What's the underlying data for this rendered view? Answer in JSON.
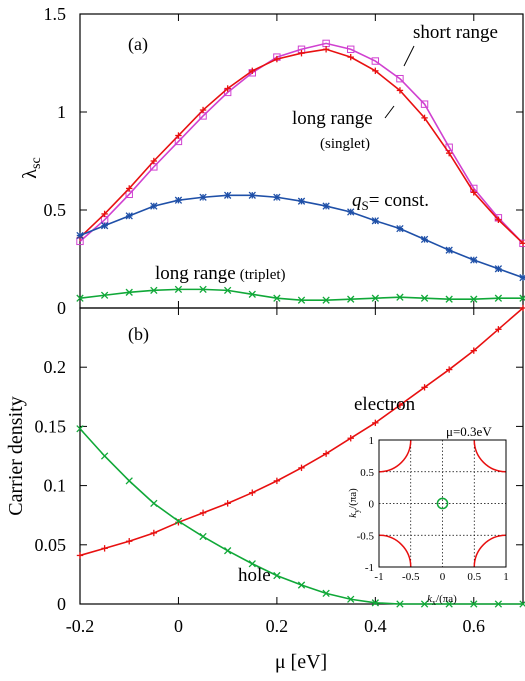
{
  "colors": {
    "short_range": "#d040d0",
    "long_range_singlet": "#e81010",
    "qs_const": "#1f50a8",
    "long_range_triplet": "#10a838",
    "electron": "#e81010",
    "hole": "#10a838",
    "fermi_surface": "#e81010",
    "fermi_pocket": "#10a838"
  },
  "chart_data": [
    {
      "type": "line",
      "panel_label": "(a)",
      "xlabel": "",
      "ylabel": "λsc",
      "ylabel_main": "λ",
      "ylabel_sub": "sc",
      "xlim": [
        -0.2,
        0.7
      ],
      "ylim": [
        0,
        1.5
      ],
      "xticks": [
        "-0.2",
        "0",
        "0.2",
        "0.4",
        "0.6"
      ],
      "yticks": [
        "0",
        "0.5",
        "1",
        "1.5"
      ],
      "annotations": {
        "short_range": "short range",
        "long_range": "long range",
        "singlet": "(singlet)",
        "qs_italic": "q",
        "qs_sub": "S",
        "qs_rest": "= const.",
        "triplet_main": "long range",
        "triplet_paren": "(triplet)"
      },
      "series": [
        {
          "key": "short_range",
          "marker": "square",
          "x": [
            -0.2,
            -0.15,
            -0.1,
            -0.05,
            0.0,
            0.05,
            0.1,
            0.15,
            0.2,
            0.25,
            0.3,
            0.35,
            0.4,
            0.45,
            0.5,
            0.55,
            0.6,
            0.65,
            0.7
          ],
          "values": [
            0.34,
            0.45,
            0.58,
            0.72,
            0.85,
            0.98,
            1.1,
            1.2,
            1.28,
            1.32,
            1.35,
            1.32,
            1.26,
            1.17,
            1.04,
            0.82,
            0.61,
            0.46,
            0.33
          ]
        },
        {
          "key": "long_range_singlet",
          "marker": "plus",
          "x": [
            -0.2,
            -0.15,
            -0.1,
            -0.05,
            0.0,
            0.05,
            0.1,
            0.15,
            0.2,
            0.25,
            0.3,
            0.35,
            0.4,
            0.45,
            0.5,
            0.55,
            0.6,
            0.65,
            0.7
          ],
          "values": [
            0.36,
            0.48,
            0.61,
            0.75,
            0.88,
            1.01,
            1.12,
            1.21,
            1.27,
            1.3,
            1.32,
            1.28,
            1.21,
            1.11,
            0.97,
            0.79,
            0.59,
            0.45,
            0.33
          ]
        },
        {
          "key": "qs_const",
          "marker": "asterisk",
          "x": [
            -0.2,
            -0.15,
            -0.1,
            -0.05,
            0.0,
            0.05,
            0.1,
            0.15,
            0.2,
            0.25,
            0.3,
            0.35,
            0.4,
            0.45,
            0.5,
            0.55,
            0.6,
            0.65,
            0.7
          ],
          "values": [
            0.37,
            0.42,
            0.47,
            0.52,
            0.55,
            0.565,
            0.575,
            0.575,
            0.565,
            0.545,
            0.52,
            0.49,
            0.445,
            0.405,
            0.35,
            0.295,
            0.245,
            0.2,
            0.155
          ]
        },
        {
          "key": "long_range_triplet",
          "marker": "x",
          "x": [
            -0.2,
            -0.15,
            -0.1,
            -0.05,
            0.0,
            0.05,
            0.1,
            0.15,
            0.2,
            0.25,
            0.3,
            0.35,
            0.4,
            0.45,
            0.5,
            0.55,
            0.6,
            0.65,
            0.7
          ],
          "values": [
            0.05,
            0.065,
            0.08,
            0.09,
            0.095,
            0.095,
            0.09,
            0.07,
            0.05,
            0.04,
            0.04,
            0.045,
            0.05,
            0.055,
            0.05,
            0.045,
            0.045,
            0.05,
            0.05
          ]
        }
      ]
    },
    {
      "type": "line",
      "panel_label": "(b)",
      "xlabel": "μ [eV]",
      "ylabel": "Carrier density",
      "xlim": [
        -0.2,
        0.7
      ],
      "ylim": [
        0,
        0.25
      ],
      "xticks": [
        "-0.2",
        "0",
        "0.2",
        "0.4",
        "0.6"
      ],
      "yticks": [
        "0",
        "0.05",
        "0.1",
        "0.15",
        "0.2"
      ],
      "annotations": {
        "electron": "electron",
        "hole": "hole"
      },
      "series": [
        {
          "key": "electron",
          "marker": "plus",
          "x": [
            -0.2,
            -0.15,
            -0.1,
            -0.05,
            0.0,
            0.05,
            0.1,
            0.15,
            0.2,
            0.25,
            0.3,
            0.35,
            0.4,
            0.45,
            0.5,
            0.55,
            0.6,
            0.65,
            0.7
          ],
          "values": [
            0.041,
            0.047,
            0.053,
            0.06,
            0.069,
            0.077,
            0.085,
            0.094,
            0.104,
            0.115,
            0.127,
            0.14,
            0.153,
            0.168,
            0.183,
            0.198,
            0.214,
            0.232,
            0.25
          ]
        },
        {
          "key": "hole",
          "marker": "x",
          "x": [
            -0.2,
            -0.15,
            -0.1,
            -0.05,
            0.0,
            0.05,
            0.1,
            0.15,
            0.2,
            0.25,
            0.3,
            0.35,
            0.4,
            0.45,
            0.5,
            0.55,
            0.6,
            0.65,
            0.7
          ],
          "values": [
            0.148,
            0.125,
            0.104,
            0.085,
            0.07,
            0.057,
            0.045,
            0.034,
            0.024,
            0.016,
            0.009,
            0.004,
            0.001,
            0.0,
            0.0,
            0.0,
            0.0,
            0.0,
            0.0
          ]
        }
      ],
      "inset": {
        "type": "diagram",
        "title": "μ=0.3eV",
        "xlabel_k": "k",
        "xlabel_sub": "x",
        "xlabel_rest": "/(πa)",
        "ylabel_k": "k",
        "ylabel_sub": "y",
        "ylabel_rest": "/(πa)",
        "xlim": [
          -1,
          1
        ],
        "ylim": [
          -1,
          1
        ],
        "xticks": [
          "-1",
          "-0.5",
          "0",
          "0.5",
          "1"
        ],
        "yticks": [
          "-1",
          "-0.5",
          "0",
          "0.5",
          "1"
        ],
        "grid": true,
        "electron_pocket_radius": 0.5,
        "hole_pocket_radius": 0.08
      }
    }
  ]
}
